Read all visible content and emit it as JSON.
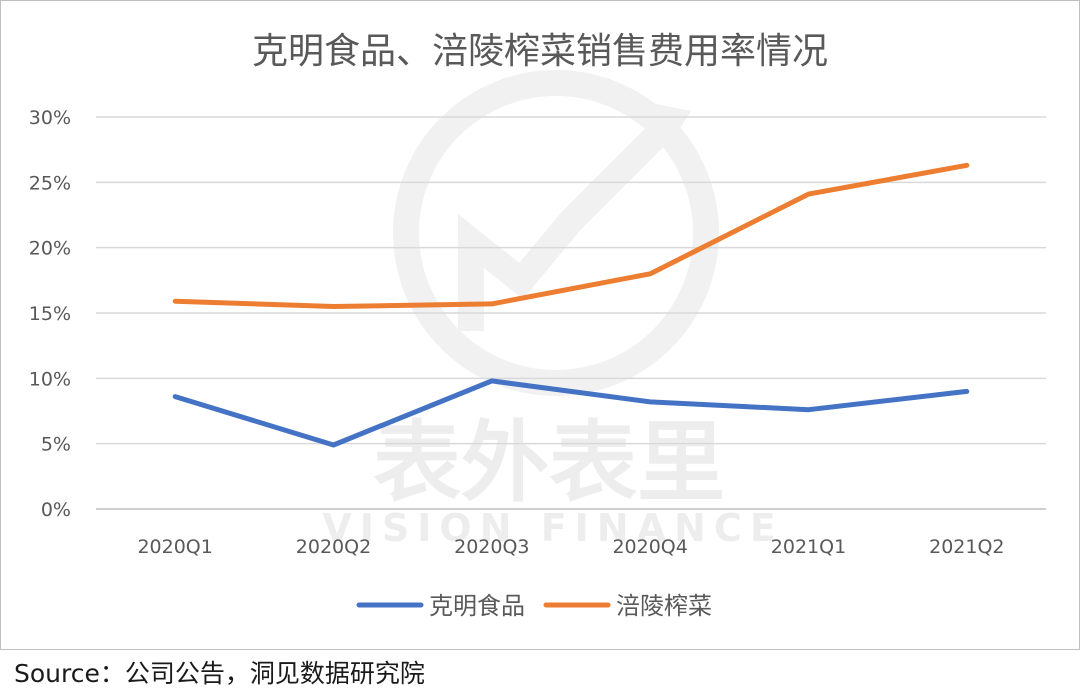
{
  "chart_data": {
    "type": "line",
    "title": "克明食品、涪陵榨菜销售费用率情况",
    "categories": [
      "2020Q1",
      "2020Q2",
      "2020Q3",
      "2020Q4",
      "2021Q1",
      "2021Q2"
    ],
    "y_ticks": [
      "0%",
      "5%",
      "10%",
      "15%",
      "20%",
      "25%",
      "30%"
    ],
    "ylim": [
      0,
      30
    ],
    "y_unit": "%",
    "grid": true,
    "legend_position": "bottom",
    "series": [
      {
        "name": "克明食品",
        "color": "#4472c4",
        "values": [
          8.6,
          4.9,
          9.8,
          8.2,
          7.6,
          9.0
        ]
      },
      {
        "name": "涪陵榨菜",
        "color": "#ed7d31",
        "values": [
          15.9,
          15.5,
          15.7,
          18.0,
          24.1,
          26.3
        ]
      }
    ]
  },
  "watermark": {
    "cn": "表外表里",
    "en": "VISION FINANCE"
  },
  "source": "Source：公司公告，洞见数据研究院"
}
